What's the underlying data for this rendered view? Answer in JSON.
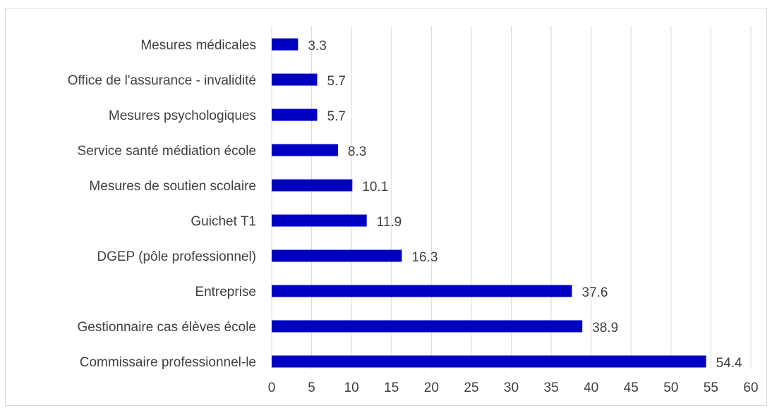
{
  "chart_data": {
    "type": "bar",
    "orientation": "horizontal",
    "categories": [
      "Mesures médicales",
      "Office de l'assurance - invalidité",
      "Mesures psychologiques",
      "Service santé médiation école",
      "Mesures de soutien scolaire",
      "Guichet T1",
      "DGEP (pôle professionnel)",
      "Entreprise",
      "Gestionnaire cas élèves école",
      "Commissaire professionnel-le"
    ],
    "values": [
      3.3,
      5.7,
      5.7,
      8.3,
      10.1,
      11.9,
      16.3,
      37.6,
      38.9,
      54.4
    ],
    "value_labels": [
      "3.3",
      "5.7",
      "5.7",
      "8.3",
      "10.1",
      "11.9",
      "16.3",
      "37.6",
      "38.9",
      "54.4"
    ],
    "xlim": [
      0,
      60
    ],
    "xticks": [
      "0",
      "5",
      "10",
      "15",
      "20",
      "25",
      "30",
      "35",
      "40",
      "45",
      "50",
      "55",
      "60"
    ],
    "grid": "vertical",
    "bar_color": "#0000C0",
    "grid_color": "#d9d9d9",
    "text_color": "#404040",
    "title": "",
    "xlabel": "",
    "ylabel": ""
  }
}
